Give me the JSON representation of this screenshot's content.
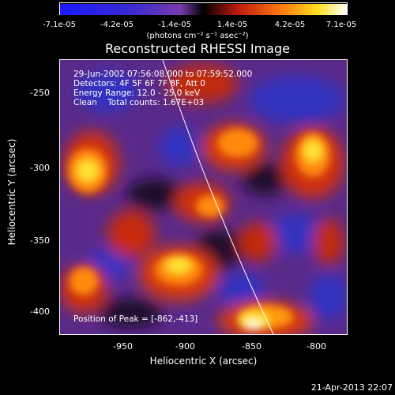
{
  "colorbar": {
    "ticks": [
      "-7.1e-05",
      "-4.2e-05",
      "-1.4e-05",
      "1.4e-05",
      "4.2e-05",
      "7.1e-05"
    ],
    "unit": "(photons cm⁻² s⁻¹ asec⁻²)"
  },
  "title": "Reconstructed RHESSI Image",
  "info": {
    "line1": "29-Jun-2002 07:56:08.000 to 07:59:52.000",
    "line2": "Detectors: 4F 5F 6F 7F 8F, Att 0",
    "line3": "Energy Range: 12.0 - 25.0 keV",
    "line4": "Clean    Total counts: 1.67E+03"
  },
  "peak": "Position of Peak = [-862,-413]",
  "axes": {
    "xlabel": "Heliocentric X (arcsec)",
    "ylabel": "Heliocentric Y (arcsec)",
    "xticks": [
      "-950",
      "-900",
      "-850",
      "-800"
    ],
    "yticks": [
      "-250",
      "-300",
      "-350",
      "-400"
    ]
  },
  "timestamp": "21-Apr-2013 22:07",
  "colors": {
    "bg": "#5a2a8a",
    "low": "#2b2bd6",
    "dark": "#1a0a2a",
    "red": "#cc2a10",
    "orange": "#ff7a10",
    "yellow": "#ffe020",
    "white": "#fffbe0"
  }
}
